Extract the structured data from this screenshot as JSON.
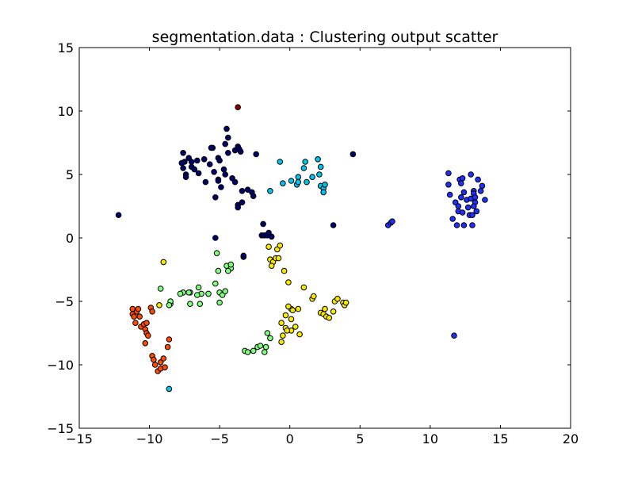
{
  "chart_data": {
    "type": "scatter",
    "title": "segmentation.data : Clustering output scatter",
    "xlabel": "",
    "ylabel": "",
    "xlim": [
      -15,
      20
    ],
    "ylim": [
      -15,
      15
    ],
    "xticks": [
      -15,
      -10,
      -5,
      0,
      5,
      10,
      15,
      20
    ],
    "yticks": [
      -15,
      -10,
      -5,
      0,
      5,
      10,
      15
    ],
    "xtick_labels": [
      "−15",
      "−10",
      "−5",
      "0",
      "5",
      "10",
      "15",
      "20"
    ],
    "ytick_labels": [
      "−15",
      "−10",
      "−5",
      "0",
      "5",
      "10",
      "15"
    ],
    "grid": false,
    "legend": "none",
    "series": [
      {
        "color": "#00006a",
        "points": [
          [
            -12.2,
            1.8
          ],
          [
            -7.6,
            6.7
          ],
          [
            -7.5,
            6.0
          ],
          [
            -7.7,
            5.9
          ],
          [
            -7.2,
            6.3
          ],
          [
            -7.6,
            5.5
          ],
          [
            -7.4,
            5.0
          ],
          [
            -7.4,
            4.8
          ],
          [
            -7.0,
            6.0
          ],
          [
            -7.0,
            5.6
          ],
          [
            -6.8,
            5.4
          ],
          [
            -6.5,
            5.1
          ],
          [
            -6.6,
            6.1
          ],
          [
            -6.0,
            4.4
          ],
          [
            -6.1,
            6.2
          ],
          [
            -5.5,
            7.1
          ],
          [
            -5.6,
            7.1
          ],
          [
            -5.7,
            5.8
          ],
          [
            -5.4,
            5.2
          ],
          [
            -5.1,
            6.3
          ],
          [
            -5.0,
            6.1
          ],
          [
            -5.1,
            4.6
          ],
          [
            -5.1,
            4.5
          ],
          [
            -5.3,
            3.2
          ],
          [
            -4.9,
            4.0
          ],
          [
            -4.7,
            5.4
          ],
          [
            -4.6,
            5.0
          ],
          [
            -4.6,
            7.4
          ],
          [
            -4.4,
            7.9
          ],
          [
            -4.5,
            8.6
          ],
          [
            -4.4,
            6.7
          ],
          [
            -4.1,
            4.7
          ],
          [
            -3.9,
            6.9
          ],
          [
            -3.7,
            7.2
          ],
          [
            -3.6,
            7.0
          ],
          [
            -3.5,
            6.8
          ],
          [
            -3.9,
            4.4
          ],
          [
            -3.7,
            2.6
          ],
          [
            -3.7,
            2.4
          ],
          [
            -3.4,
            2.8
          ],
          [
            -3.4,
            3.7
          ],
          [
            -3.0,
            3.8
          ],
          [
            -2.7,
            3.6
          ],
          [
            -2.6,
            3.3
          ],
          [
            -2.4,
            6.6
          ],
          [
            -1.9,
            1.1
          ],
          [
            -2.0,
            0.2
          ],
          [
            -1.8,
            0.2
          ],
          [
            -1.6,
            0.2
          ],
          [
            -1.5,
            0.4
          ],
          [
            -1.3,
            0.1
          ],
          [
            -5.3,
            0.0
          ],
          [
            -3.3,
            -1.5
          ],
          [
            -3.3,
            -1.4
          ],
          [
            3.1,
            1.0
          ],
          [
            4.5,
            6.6
          ]
        ]
      },
      {
        "color": "#1f2fff",
        "points": [
          [
            7.0,
            1.0
          ],
          [
            7.2,
            1.2
          ],
          [
            7.3,
            1.3
          ],
          [
            11.3,
            5.1
          ],
          [
            11.3,
            4.2
          ],
          [
            11.4,
            3.4
          ],
          [
            11.6,
            1.5
          ],
          [
            11.8,
            2.8
          ],
          [
            11.9,
            1.0
          ],
          [
            12.0,
            2.1
          ],
          [
            12.1,
            4.6
          ],
          [
            12.2,
            4.3
          ],
          [
            12.3,
            4.7
          ],
          [
            12.2,
            3.2
          ],
          [
            12.0,
            2.5
          ],
          [
            12.4,
            3.6
          ],
          [
            12.3,
            2.0
          ],
          [
            12.4,
            1.0
          ],
          [
            12.6,
            3.0
          ],
          [
            12.7,
            2.4
          ],
          [
            12.8,
            1.8
          ],
          [
            12.9,
            3.1
          ],
          [
            12.9,
            5.0
          ],
          [
            13.0,
            1.8
          ],
          [
            13.0,
            1.0
          ],
          [
            13.1,
            3.7
          ],
          [
            13.1,
            3.5
          ],
          [
            13.2,
            3.2
          ],
          [
            13.2,
            2.8
          ],
          [
            13.1,
            2.5
          ],
          [
            13.3,
            2.1
          ],
          [
            13.4,
            4.6
          ],
          [
            13.6,
            3.7
          ],
          [
            13.7,
            4.1
          ],
          [
            13.9,
            3.0
          ],
          [
            11.7,
            -7.7
          ]
        ]
      },
      {
        "color": "#00c6ee",
        "points": [
          [
            -0.7,
            6.0
          ],
          [
            -0.5,
            4.3
          ],
          [
            -1.4,
            3.7
          ],
          [
            0.1,
            4.5
          ],
          [
            0.5,
            4.2
          ],
          [
            0.6,
            4.8
          ],
          [
            0.6,
            4.4
          ],
          [
            1.0,
            5.5
          ],
          [
            1.1,
            6.0
          ],
          [
            1.2,
            4.4
          ],
          [
            1.6,
            4.8
          ],
          [
            2.0,
            6.2
          ],
          [
            2.1,
            5.0
          ],
          [
            2.2,
            5.6
          ],
          [
            2.2,
            4.1
          ],
          [
            2.4,
            3.9
          ],
          [
            2.5,
            4.2
          ],
          [
            2.4,
            3.6
          ],
          [
            -8.6,
            -11.9
          ]
        ]
      },
      {
        "color": "#7fff7b",
        "points": [
          [
            -5.2,
            -1.2
          ],
          [
            -5.1,
            -2.6
          ],
          [
            -4.5,
            -2.2
          ],
          [
            -4.2,
            -2.4
          ],
          [
            -4.2,
            -2.1
          ],
          [
            -4.4,
            -2.6
          ],
          [
            -5.3,
            -3.6
          ],
          [
            -5.0,
            -4.3
          ],
          [
            -4.8,
            -4.5
          ],
          [
            -4.6,
            -4.2
          ],
          [
            -5.0,
            -5.1
          ],
          [
            -5.8,
            -4.4
          ],
          [
            -6.3,
            -4.4
          ],
          [
            -6.5,
            -3.9
          ],
          [
            -6.6,
            -4.5
          ],
          [
            -6.4,
            -5.2
          ],
          [
            -7.1,
            -4.3
          ],
          [
            -7.2,
            -4.3
          ],
          [
            -7.1,
            -5.2
          ],
          [
            -7.6,
            -4.3
          ],
          [
            -7.8,
            -4.4
          ],
          [
            -8.5,
            -5.2
          ],
          [
            -8.5,
            -5.0
          ],
          [
            -8.6,
            -5.3
          ],
          [
            -9.2,
            -4.0
          ],
          [
            -3.2,
            -8.9
          ],
          [
            -3.0,
            -9.0
          ],
          [
            -2.6,
            -8.9
          ],
          [
            -2.3,
            -8.6
          ],
          [
            -2.1,
            -8.5
          ],
          [
            -1.8,
            -9.0
          ],
          [
            -1.7,
            -8.6
          ],
          [
            -1.6,
            -7.5
          ],
          [
            -1.4,
            -7.9
          ]
        ]
      },
      {
        "color": "#fbe800",
        "points": [
          [
            -1.5,
            -0.7
          ],
          [
            -1.4,
            -1.7
          ],
          [
            -1.2,
            -1.9
          ],
          [
            -1.3,
            -2.2
          ],
          [
            -1.0,
            -1.6
          ],
          [
            -0.9,
            -0.9
          ],
          [
            -0.7,
            -0.6
          ],
          [
            -0.8,
            -1.6
          ],
          [
            -0.4,
            -2.6
          ],
          [
            -0.1,
            -3.5
          ],
          [
            0.1,
            -5.6
          ],
          [
            -0.1,
            -5.4
          ],
          [
            -0.3,
            -6.1
          ],
          [
            -0.6,
            -6.7
          ],
          [
            -0.3,
            -7.1
          ],
          [
            0.1,
            -6.4
          ],
          [
            0.2,
            -5.7
          ],
          [
            0.6,
            -5.6
          ],
          [
            0.4,
            -7.0
          ],
          [
            0.1,
            -7.3
          ],
          [
            -0.5,
            -7.7
          ],
          [
            -0.6,
            -8.2
          ],
          [
            -0.2,
            -7.3
          ],
          [
            0.7,
            -7.6
          ],
          [
            1.0,
            -3.9
          ],
          [
            1.6,
            -4.8
          ],
          [
            1.7,
            -4.6
          ],
          [
            2.2,
            -5.9
          ],
          [
            2.4,
            -6.0
          ],
          [
            2.5,
            -5.6
          ],
          [
            2.6,
            -6.2
          ],
          [
            2.8,
            -6.3
          ],
          [
            3.1,
            -5.8
          ],
          [
            3.2,
            -5.0
          ],
          [
            3.4,
            -4.8
          ],
          [
            3.8,
            -5.1
          ],
          [
            3.9,
            -5.3
          ],
          [
            4.0,
            -5.1
          ],
          [
            -9.0,
            -1.9
          ],
          [
            -9.3,
            -5.3
          ]
        ]
      },
      {
        "color": "#ff4a00",
        "points": [
          [
            -11.2,
            -5.6
          ],
          [
            -11.2,
            -6.0
          ],
          [
            -11.1,
            -6.2
          ],
          [
            -11.0,
            -6.7
          ],
          [
            -10.9,
            -5.8
          ],
          [
            -10.8,
            -5.6
          ],
          [
            -10.7,
            -6.2
          ],
          [
            -10.6,
            -7.0
          ],
          [
            -10.4,
            -6.8
          ],
          [
            -10.3,
            -7.2
          ],
          [
            -10.2,
            -7.5
          ],
          [
            -10.2,
            -6.7
          ],
          [
            -10.1,
            -7.7
          ],
          [
            -10.3,
            -8.3
          ],
          [
            -9.9,
            -5.5
          ],
          [
            -9.8,
            -5.8
          ],
          [
            -9.8,
            -9.3
          ],
          [
            -9.7,
            -9.6
          ],
          [
            -9.6,
            -10.0
          ],
          [
            -9.4,
            -10.5
          ],
          [
            -9.2,
            -10.3
          ],
          [
            -9.2,
            -9.8
          ],
          [
            -9.0,
            -9.5
          ],
          [
            -8.9,
            -10.2
          ],
          [
            -8.7,
            -8.6
          ],
          [
            -8.6,
            -8.0
          ]
        ]
      },
      {
        "color": "#7f0000",
        "points": [
          [
            -3.7,
            10.3
          ]
        ]
      }
    ]
  }
}
